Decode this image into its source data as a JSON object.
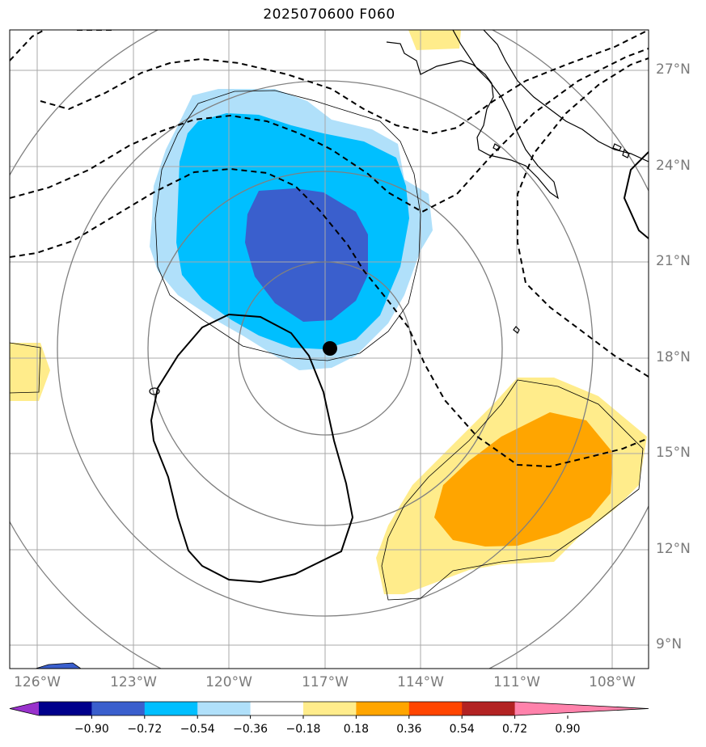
{
  "title": "2025070600 F060",
  "latitude_labels": [
    "27°N",
    "24°N",
    "21°N",
    "18°N",
    "15°N",
    "12°N",
    "9°N"
  ],
  "longitude_labels": [
    "126°W",
    "123°W",
    "120°W",
    "117°W",
    "114°W",
    "111°W",
    "108°W"
  ],
  "colorbar": {
    "labels": [
      "−0.90",
      "−0.72",
      "−0.54",
      "−0.36",
      "−0.18",
      "0.18",
      "0.36",
      "0.54",
      "0.72",
      "0.90"
    ],
    "colors": [
      "#9932cc",
      "#00008b",
      "#3a5fcd",
      "#00bfff",
      "#b0e0fa",
      "#ffffff",
      "#ffec8b",
      "#ffa500",
      "#ff4500",
      "#b22222",
      "#ff82ab"
    ]
  },
  "colors": {
    "neg_light": "#b0e0fa",
    "neg_medium": "#00bfff",
    "neg_dark": "#3a5fcd",
    "pos_light": "#ffec8b",
    "pos_medium": "#ffa500",
    "grid": "#a9a9a9",
    "range_rings": "#808080"
  },
  "storm_center_marker": "black-dot"
}
